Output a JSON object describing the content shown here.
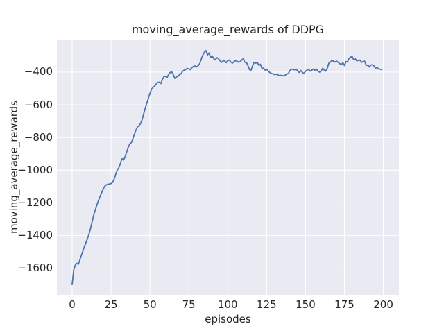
{
  "chart_data": {
    "type": "line",
    "title": "moving_average_rewards of DDPG",
    "xlabel": "episodes",
    "ylabel": "moving_average_rewards",
    "x_start": 0,
    "x_step": 1,
    "series": [
      {
        "name": "moving_average_rewards",
        "values": [
          -1700,
          -1612,
          -1582,
          -1570,
          -1576,
          -1548,
          -1520,
          -1492,
          -1465,
          -1440,
          -1415,
          -1385,
          -1350,
          -1310,
          -1270,
          -1240,
          -1210,
          -1185,
          -1160,
          -1137,
          -1115,
          -1098,
          -1090,
          -1086,
          -1085,
          -1082,
          -1075,
          -1055,
          -1025,
          -1000,
          -985,
          -960,
          -930,
          -938,
          -920,
          -890,
          -862,
          -840,
          -832,
          -810,
          -780,
          -755,
          -735,
          -728,
          -715,
          -690,
          -655,
          -620,
          -590,
          -560,
          -530,
          -505,
          -492,
          -486,
          -472,
          -463,
          -462,
          -470,
          -445,
          -428,
          -425,
          -434,
          -415,
          -402,
          -398,
          -415,
          -438,
          -430,
          -425,
          -415,
          -410,
          -395,
          -388,
          -384,
          -377,
          -380,
          -385,
          -372,
          -365,
          -362,
          -368,
          -360,
          -348,
          -320,
          -295,
          -278,
          -268,
          -295,
          -283,
          -310,
          -300,
          -318,
          -325,
          -312,
          -316,
          -330,
          -340,
          -332,
          -330,
          -342,
          -330,
          -326,
          -338,
          -345,
          -336,
          -330,
          -333,
          -340,
          -335,
          -326,
          -318,
          -340,
          -340,
          -360,
          -385,
          -388,
          -360,
          -340,
          -345,
          -340,
          -358,
          -352,
          -378,
          -375,
          -388,
          -382,
          -395,
          -402,
          -408,
          -410,
          -415,
          -413,
          -414,
          -422,
          -420,
          -420,
          -424,
          -418,
          -412,
          -408,
          -390,
          -382,
          -384,
          -386,
          -382,
          -394,
          -402,
          -390,
          -402,
          -408,
          -395,
          -388,
          -382,
          -394,
          -388,
          -382,
          -388,
          -382,
          -394,
          -400,
          -395,
          -376,
          -388,
          -394,
          -375,
          -345,
          -338,
          -328,
          -333,
          -338,
          -333,
          -340,
          -348,
          -355,
          -342,
          -360,
          -335,
          -338,
          -315,
          -308,
          -305,
          -325,
          -318,
          -332,
          -328,
          -326,
          -340,
          -335,
          -333,
          -360,
          -356,
          -368,
          -357,
          -355,
          -362,
          -375,
          -372,
          -380,
          -383,
          -385
        ]
      }
    ],
    "xlim": [
      -9.8,
      210
    ],
    "ylim": [
      -1763,
      -205
    ],
    "xticks": {
      "values": [
        0,
        25,
        50,
        75,
        100,
        125,
        150,
        175,
        200
      ],
      "labels": [
        "0",
        "25",
        "50",
        "75",
        "100",
        "125",
        "150",
        "175",
        "200"
      ]
    },
    "yticks": {
      "values": [
        -400,
        -600,
        -800,
        -1000,
        -1200,
        -1400,
        -1600
      ],
      "labels": [
        "−400",
        "−600",
        "−800",
        "−1000",
        "−1200",
        "−1400",
        "−1600"
      ]
    },
    "grid": true,
    "legend": null,
    "style": {
      "line_color": "#4C72B0",
      "line_width": 1.8,
      "axes_background": "#EAEAF2",
      "grid_color": "#FFFFFF",
      "figure_background": "#FFFFFF",
      "text_color": "#262626"
    }
  }
}
